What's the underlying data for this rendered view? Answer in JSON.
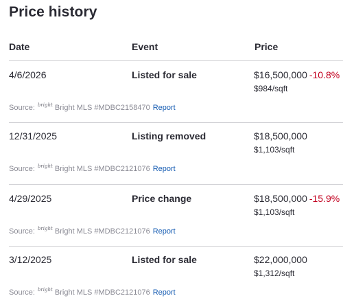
{
  "title": "Price history",
  "columns": {
    "date": "Date",
    "event": "Event",
    "price": "Price"
  },
  "rows": [
    {
      "date": "4/6/2026",
      "event": "Listed for sale",
      "price": "$16,500,000",
      "change": "-10.8%",
      "sqft": "$984/sqft",
      "source_label": "Source:",
      "logo_text": "bright",
      "source_text": "Bright MLS #MDBC2158470",
      "report": "Report"
    },
    {
      "date": "12/31/2025",
      "event": "Listing removed",
      "price": "$18,500,000",
      "change": "",
      "sqft": "$1,103/sqft",
      "source_label": "Source:",
      "logo_text": "bright",
      "source_text": "Bright MLS #MDBC2121076",
      "report": "Report"
    },
    {
      "date": "4/29/2025",
      "event": "Price change",
      "price": "$18,500,000",
      "change": "-15.9%",
      "sqft": "$1,103/sqft",
      "source_label": "Source:",
      "logo_text": "bright",
      "source_text": "Bright MLS #MDBC2121076",
      "report": "Report"
    },
    {
      "date": "3/12/2025",
      "event": "Listed for sale",
      "price": "$22,000,000",
      "change": "",
      "sqft": "$1,312/sqft",
      "source_label": "Source:",
      "logo_text": "bright",
      "source_text": "Bright MLS #MDBC2121076",
      "report": "Report"
    }
  ],
  "colors": {
    "text": "#2a2a33",
    "decrease": "#c2001f",
    "link": "#1a5fb4",
    "muted": "#8a8a94"
  }
}
